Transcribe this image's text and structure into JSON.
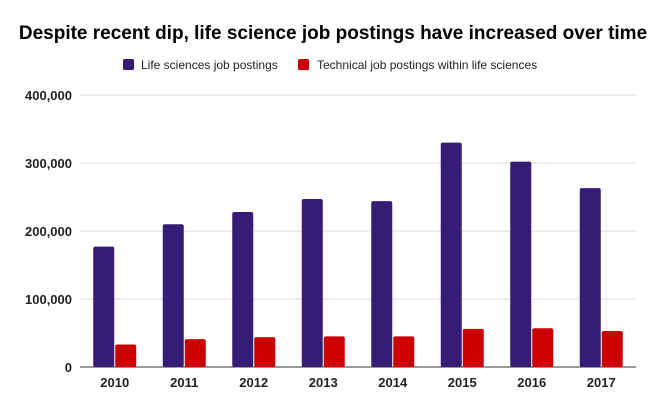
{
  "chart_data": {
    "type": "bar",
    "title": "Despite recent dip, life science job postings have increased over time",
    "xlabel": "",
    "ylabel": "",
    "categories": [
      "2010",
      "2011",
      "2012",
      "2013",
      "2014",
      "2015",
      "2016",
      "2017"
    ],
    "series": [
      {
        "name": "Life sciences job postings",
        "color": "#351c75",
        "values": [
          177000,
          210000,
          228000,
          247000,
          244000,
          330000,
          302000,
          263000
        ]
      },
      {
        "name": "Technical job postings within life sciences",
        "color": "#cc0000",
        "values": [
          33000,
          41000,
          44000,
          45000,
          45000,
          56000,
          57000,
          53000
        ]
      }
    ],
    "ylim": [
      0,
      400000
    ],
    "yticks": [
      0,
      100000,
      200000,
      300000,
      400000
    ],
    "ytick_labels": [
      "0",
      "100,000",
      "200,000",
      "300,000",
      "400,000"
    ],
    "grid": true,
    "legend_position": "top-center"
  }
}
